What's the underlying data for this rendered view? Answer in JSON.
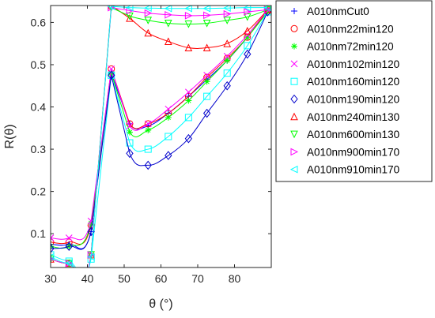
{
  "chart_data": {
    "type": "line",
    "title": "",
    "xlabel": "θ (°)",
    "ylabel": "R(θ)",
    "xlim": [
      30,
      90
    ],
    "ylim": [
      0.02,
      0.64
    ],
    "xticks": [
      30,
      40,
      50,
      60,
      70,
      80
    ],
    "yticks": [
      0.1,
      0.2,
      0.3,
      0.4,
      0.5,
      0.6
    ],
    "grid": false,
    "legend_position": "outside-right",
    "series": [
      {
        "name": "A010nmCut0",
        "color": "#0000ff",
        "marker": "plus",
        "x": [
          30,
          35,
          41,
          46.5,
          51.5,
          56.5,
          62,
          67.5,
          72.5,
          78,
          83.5,
          89
        ],
        "y": [
          0.075,
          0.075,
          0.105,
          0.48,
          0.36,
          0.355,
          0.385,
          0.425,
          0.465,
          0.51,
          0.565,
          0.63
        ]
      },
      {
        "name": "A010nm22min120",
        "color": "#ff0000",
        "marker": "circle",
        "x": [
          30,
          35,
          41,
          46.5,
          51.5,
          56.5,
          62,
          67.5,
          72.5,
          78,
          83.5,
          89
        ],
        "y": [
          0.08,
          0.08,
          0.12,
          0.49,
          0.36,
          0.36,
          0.385,
          0.425,
          0.47,
          0.515,
          0.565,
          0.63
        ]
      },
      {
        "name": "A010nm72min120",
        "color": "#00ff00",
        "marker": "asterisk",
        "x": [
          30,
          35,
          41,
          46.5,
          51.5,
          56.5,
          62,
          67.5,
          72.5,
          78,
          83.5,
          89
        ],
        "y": [
          0.07,
          0.07,
          0.125,
          0.48,
          0.34,
          0.345,
          0.375,
          0.415,
          0.46,
          0.51,
          0.565,
          0.625
        ]
      },
      {
        "name": "A010nm102min120",
        "color": "#ff00ff",
        "marker": "x",
        "x": [
          30,
          35,
          41,
          46.5,
          51.5,
          56.5,
          62,
          67.5,
          72.5,
          78,
          83.5,
          89
        ],
        "y": [
          0.09,
          0.09,
          0.13,
          0.49,
          0.355,
          0.36,
          0.395,
          0.435,
          0.475,
          0.52,
          0.57,
          0.63
        ]
      },
      {
        "name": "A010nm160min120",
        "color": "#00ffff",
        "marker": "square",
        "x": [
          30,
          35,
          41,
          46.5,
          51.5,
          56.5,
          62,
          67.5,
          72.5,
          78,
          83.5,
          89
        ],
        "y": [
          0.05,
          0.035,
          0.04,
          0.475,
          0.315,
          0.3,
          0.33,
          0.375,
          0.425,
          0.48,
          0.545,
          0.625
        ]
      },
      {
        "name": "A010nm190min120",
        "color": "#0000cc",
        "marker": "diamond",
        "x": [
          30,
          35,
          41,
          46.5,
          51.5,
          56.5,
          62,
          67.5,
          72.5,
          78,
          83.5,
          89
        ],
        "y": [
          0.065,
          0.07,
          0.105,
          0.475,
          0.29,
          0.262,
          0.285,
          0.325,
          0.385,
          0.45,
          0.525,
          0.625
        ]
      },
      {
        "name": "A010nm240min130",
        "color": "#ff0000",
        "marker": "triangle-up",
        "x": [
          30,
          35,
          41,
          46.5,
          51.5,
          56.5,
          62,
          67.5,
          72.5,
          78,
          83.5,
          89
        ],
        "y": [
          0.04,
          0.03,
          0.05,
          0.64,
          0.61,
          0.575,
          0.555,
          0.54,
          0.54,
          0.55,
          0.58,
          0.63
        ]
      },
      {
        "name": "A010nm600min130",
        "color": "#00ff00",
        "marker": "triangle-down",
        "x": [
          30,
          35,
          41,
          46.5,
          51.5,
          56.5,
          62,
          67.5,
          72.5,
          78,
          83.5,
          89
        ],
        "y": [
          0.04,
          0.03,
          0.05,
          0.635,
          0.615,
          0.605,
          0.598,
          0.596,
          0.598,
          0.605,
          0.613,
          0.63
        ]
      },
      {
        "name": "A010nm900min170",
        "color": "#ff00ff",
        "marker": "triangle-right",
        "x": [
          30,
          35,
          41,
          46.5,
          51.5,
          56.5,
          62,
          67.5,
          72.5,
          78,
          83.5,
          89
        ],
        "y": [
          0.04,
          0.03,
          0.05,
          0.635,
          0.628,
          0.622,
          0.618,
          0.616,
          0.617,
          0.62,
          0.625,
          0.63
        ]
      },
      {
        "name": "A010nm910min170",
        "color": "#00ffff",
        "marker": "triangle-left",
        "x": [
          30,
          35,
          41,
          46.5,
          51.5,
          56.5,
          62,
          67.5,
          72.5,
          78,
          83.5,
          89
        ],
        "y": [
          0.045,
          0.03,
          0.045,
          0.638,
          0.635,
          0.634,
          0.633,
          0.633,
          0.633,
          0.634,
          0.635,
          0.635
        ]
      }
    ]
  }
}
